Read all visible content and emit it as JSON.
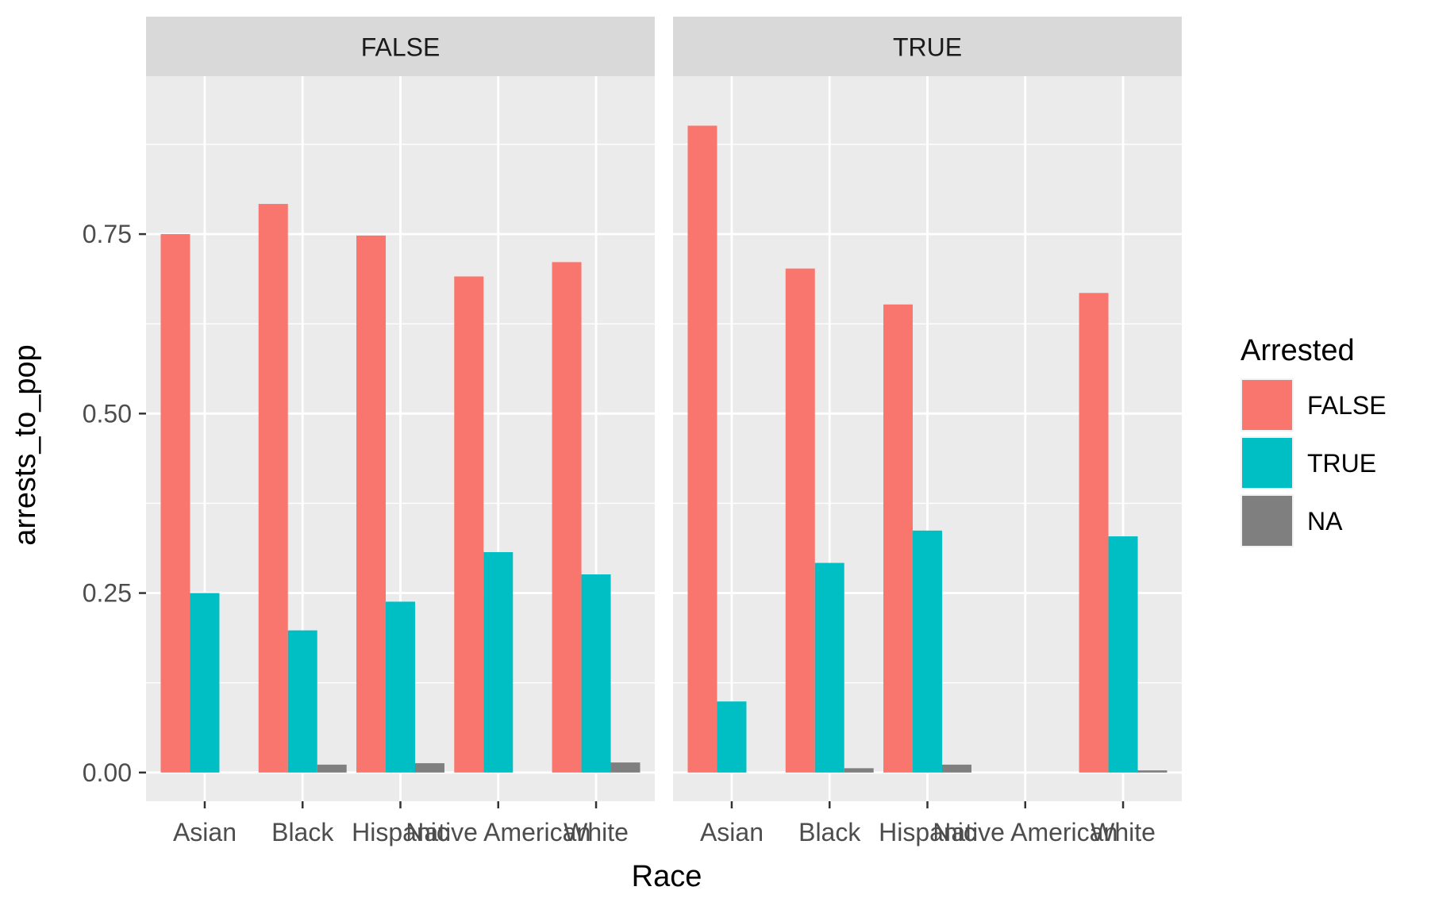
{
  "chart_data": {
    "type": "bar",
    "facet_labels": [
      "FALSE",
      "TRUE"
    ],
    "categories": [
      "Asian",
      "Black",
      "Hispanic",
      "Native American",
      "White"
    ],
    "xlabel": "Race",
    "ylabel": "arrests_to_pop",
    "ylim": [
      -0.04,
      0.97
    ],
    "yticks": [
      0,
      0.25,
      0.5,
      0.75
    ],
    "ytick_labels": [
      "0.00",
      "0.25",
      "0.50",
      "0.75"
    ],
    "legend": {
      "title": "Arrested",
      "position": "right",
      "entries": [
        "FALSE",
        "TRUE",
        "NA"
      ]
    },
    "colors": {
      "FALSE": "#F8766D",
      "TRUE": "#00BFC4",
      "NA": "#7F7F7F"
    },
    "facets": [
      {
        "label": "FALSE",
        "series": [
          {
            "name": "FALSE",
            "values": [
              0.75,
              0.792,
              0.748,
              0.691,
              0.711
            ]
          },
          {
            "name": "TRUE",
            "values": [
              0.25,
              0.198,
              0.238,
              0.307,
              0.276
            ]
          },
          {
            "name": "NA",
            "values": [
              0.0,
              0.011,
              0.013,
              0.0,
              0.014
            ]
          }
        ]
      },
      {
        "label": "TRUE",
        "series": [
          {
            "name": "FALSE",
            "values": [
              0.901,
              0.702,
              0.652,
              null,
              0.668
            ]
          },
          {
            "name": "TRUE",
            "values": [
              0.099,
              0.292,
              0.337,
              null,
              0.329
            ]
          },
          {
            "name": "NA",
            "values": [
              0.0,
              0.006,
              0.011,
              null,
              0.003
            ]
          }
        ]
      }
    ]
  }
}
